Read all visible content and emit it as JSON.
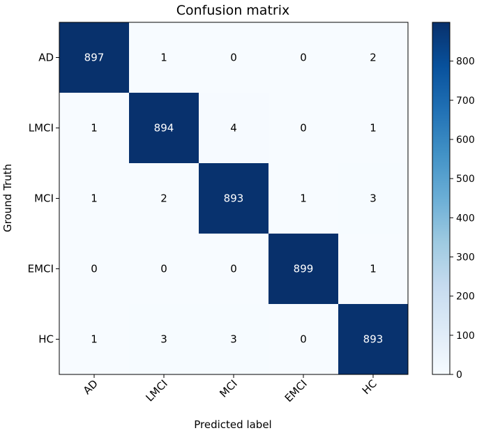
{
  "chart_data": {
    "type": "heatmap",
    "title": "Confusion matrix",
    "xlabel": "Predicted label",
    "ylabel": "Ground Truth",
    "x_categories": [
      "AD",
      "LMCI",
      "MCI",
      "EMCI",
      "HC"
    ],
    "y_categories": [
      "AD",
      "LMCI",
      "MCI",
      "EMCI",
      "HC"
    ],
    "values": [
      [
        897,
        1,
        0,
        0,
        2
      ],
      [
        1,
        894,
        4,
        0,
        1
      ],
      [
        1,
        2,
        893,
        1,
        3
      ],
      [
        0,
        0,
        0,
        899,
        1
      ],
      [
        1,
        3,
        3,
        0,
        893
      ]
    ],
    "colormap": "Blues",
    "colorbar": {
      "range": [
        0,
        899
      ],
      "ticks": [
        0,
        100,
        200,
        300,
        400,
        500,
        600,
        700,
        800
      ]
    },
    "x_tick_rotation": "45 degrees"
  }
}
